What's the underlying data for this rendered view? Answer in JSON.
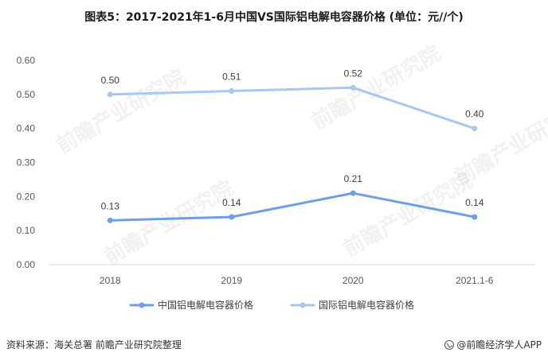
{
  "title": "图表5：2017-2021年1-6月中国VS国际铝电解电容器价格 (单位：元//个)",
  "footer": {
    "source": "资料来源：海关总署  前瞻产业研究院整理",
    "brand": "@前瞻经济学人APP"
  },
  "watermark_text": "前瞻产业研究院",
  "chart_data": {
    "type": "line",
    "title": "图表5：2017-2021年1-6月中国VS国际铝电解电容器价格 (单位：元//个)",
    "xlabel": "",
    "ylabel": "",
    "categories": [
      "2018",
      "2019",
      "2020",
      "2021.1-6"
    ],
    "ylim": [
      0,
      0.6
    ],
    "yticks": [
      "0.00",
      "0.10",
      "0.20",
      "0.30",
      "0.40",
      "0.50",
      "0.60"
    ],
    "grid": false,
    "legend_position": "bottom",
    "series": [
      {
        "name": "中国铝电解电容器价格",
        "values": [
          0.13,
          0.14,
          0.21,
          0.14
        ],
        "labels": [
          "0.13",
          "0.14",
          "0.21",
          "0.14"
        ],
        "color": "#6e9fe6"
      },
      {
        "name": "国际铝电解电容器价格",
        "values": [
          0.5,
          0.51,
          0.52,
          0.4
        ],
        "labels": [
          "0.50",
          "0.51",
          "0.52",
          "0.40"
        ],
        "color": "#a8c8f0"
      }
    ]
  }
}
